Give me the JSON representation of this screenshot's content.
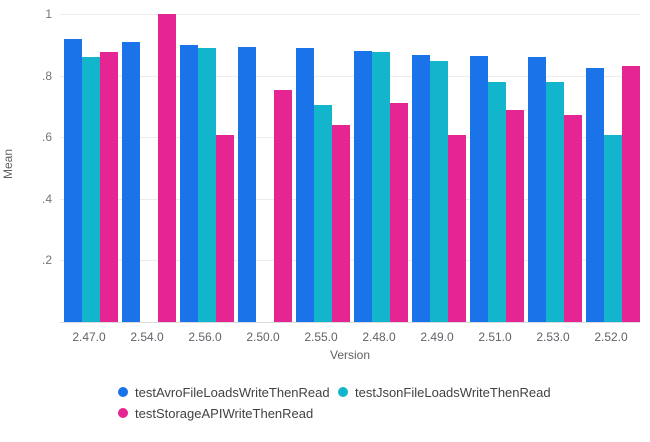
{
  "chart_data": {
    "type": "bar",
    "title": "",
    "xlabel": "Version",
    "ylabel": "Mean",
    "categories": [
      "2.47.0",
      "2.54.0",
      "2.56.0",
      "2.50.0",
      "2.55.0",
      "2.48.0",
      "2.49.0",
      "2.51.0",
      "2.53.0",
      "2.52.0"
    ],
    "series": [
      {
        "name": "testAvroFileLoadsWriteThenRead",
        "color": "#1A73E8",
        "values": [
          0.92,
          0.91,
          0.9,
          0.893,
          0.889,
          0.879,
          0.868,
          0.863,
          0.859,
          0.825
        ]
      },
      {
        "name": "testJsonFileLoadsWriteThenRead",
        "color": "#12B5CB",
        "values": [
          0.86,
          null,
          0.89,
          null,
          0.706,
          0.877,
          0.848,
          0.78,
          0.78,
          0.607
        ]
      },
      {
        "name": "testStorageAPIWriteThenRead",
        "color": "#E52592",
        "values": [
          0.875,
          1.0,
          0.606,
          0.754,
          0.638,
          0.71,
          0.606,
          0.688,
          0.671,
          0.832
        ]
      }
    ],
    "ylim": [
      0,
      1
    ],
    "y_ticks": [
      {
        "label": "1",
        "value": 1.0
      },
      {
        "label": ".8",
        "value": 0.8
      },
      {
        "label": ".6",
        "value": 0.6
      },
      {
        "label": ".4",
        "value": 0.4
      },
      {
        "label": ".2",
        "value": 0.2
      }
    ],
    "grid": true,
    "legend_position": "bottom"
  },
  "colors": {
    "background": "#ffffff",
    "gridline": "#ececec",
    "baseline": "#dadce0",
    "axis_text": "#5f6368",
    "legend_text": "#424242"
  }
}
